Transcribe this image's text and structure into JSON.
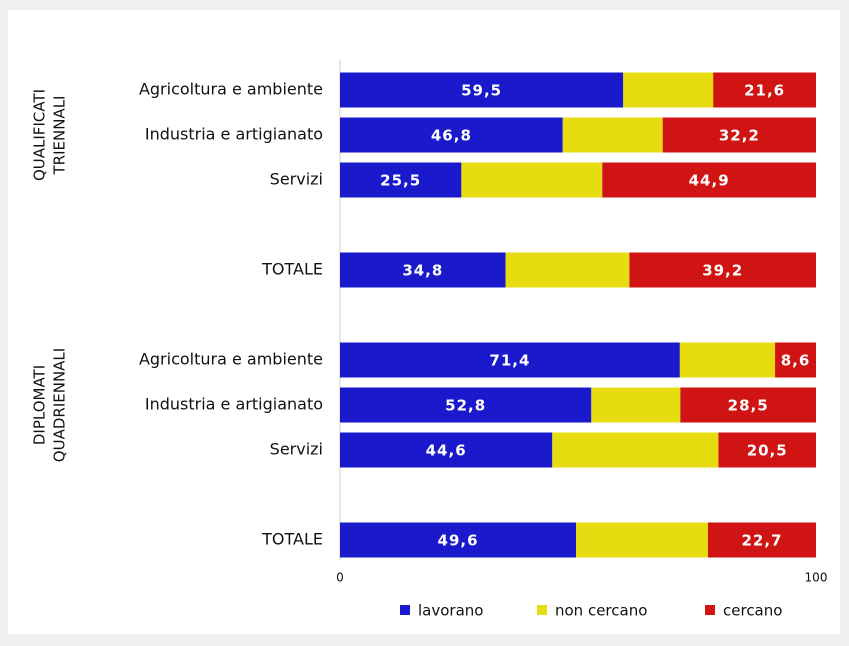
{
  "chart_data": {
    "type": "stacked-bar-horizontal",
    "categories": [
      "Agricoltura e ambiente",
      "Industria e artigianato",
      "Servizi",
      null,
      "TOTALE",
      null,
      "Agricoltura e ambiente",
      "Industria e artigianato",
      "Servizi",
      null,
      "TOTALE"
    ],
    "groups": [
      [
        "QUALIFICATI",
        "TRIENNALI"
      ],
      [
        "DIPLOMATI",
        "QUADRIENNALI"
      ]
    ],
    "series": [
      {
        "name": "lavorano",
        "color": "#1a1acc",
        "values": [
          59.5,
          46.8,
          25.5,
          null,
          34.8,
          null,
          71.4,
          52.8,
          44.6,
          null,
          49.6
        ],
        "value_labels": [
          "59,5",
          "46,8",
          "25,5",
          null,
          "34,8",
          null,
          "71,4",
          "52,8",
          "44,6",
          null,
          "49,6"
        ]
      },
      {
        "name": "non cercano",
        "color": "#e6dc10",
        "values": [
          18.9,
          21.0,
          29.6,
          null,
          26.0,
          null,
          20.0,
          18.7,
          34.9,
          null,
          27.7
        ]
      },
      {
        "name": "cercano",
        "color": "#d01414",
        "values": [
          21.6,
          32.2,
          44.9,
          null,
          39.2,
          null,
          8.6,
          28.5,
          20.5,
          null,
          22.7
        ],
        "value_labels": [
          "21,6",
          "32,2",
          "44,9",
          null,
          "39,2",
          null,
          "8,6",
          "28,5",
          "20,5",
          null,
          "22,7"
        ]
      }
    ],
    "xlim": [
      0,
      100
    ],
    "xticks": [
      0,
      100
    ],
    "legend": "bottom"
  }
}
